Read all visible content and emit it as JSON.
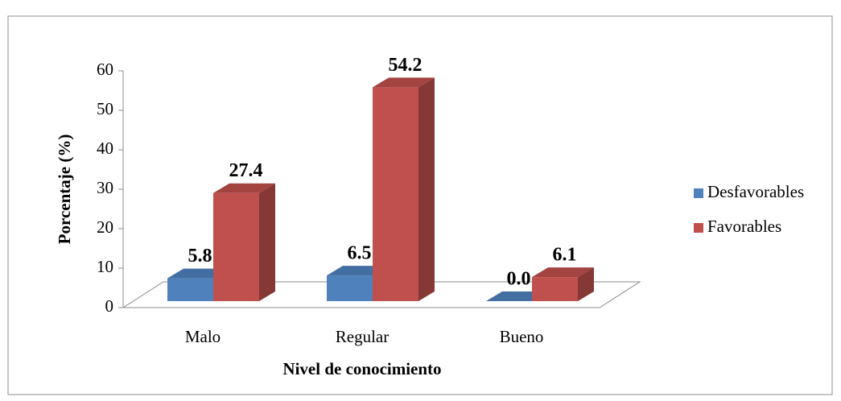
{
  "chart_data": {
    "type": "bar3d",
    "x_label": "Nivel de conocimiento",
    "y_label": "Porcentaje (%)",
    "categories": [
      "Malo",
      "Regular",
      "Bueno"
    ],
    "series": [
      {
        "name": "Desfavorables",
        "color": "#4f81bd",
        "values": [
          5.8,
          6.5,
          0
        ],
        "value_labels": [
          "5.8",
          "6.5",
          "0.0"
        ]
      },
      {
        "name": "Favorables",
        "color": "#c0504d",
        "values": [
          27.4,
          54.2,
          6.1
        ],
        "value_labels": [
          "27.4",
          "54.2",
          "6.1"
        ]
      }
    ],
    "ylim": [
      0,
      60
    ],
    "yticks": [
      0,
      10,
      20,
      30,
      40,
      50,
      60
    ],
    "legend": "right"
  }
}
